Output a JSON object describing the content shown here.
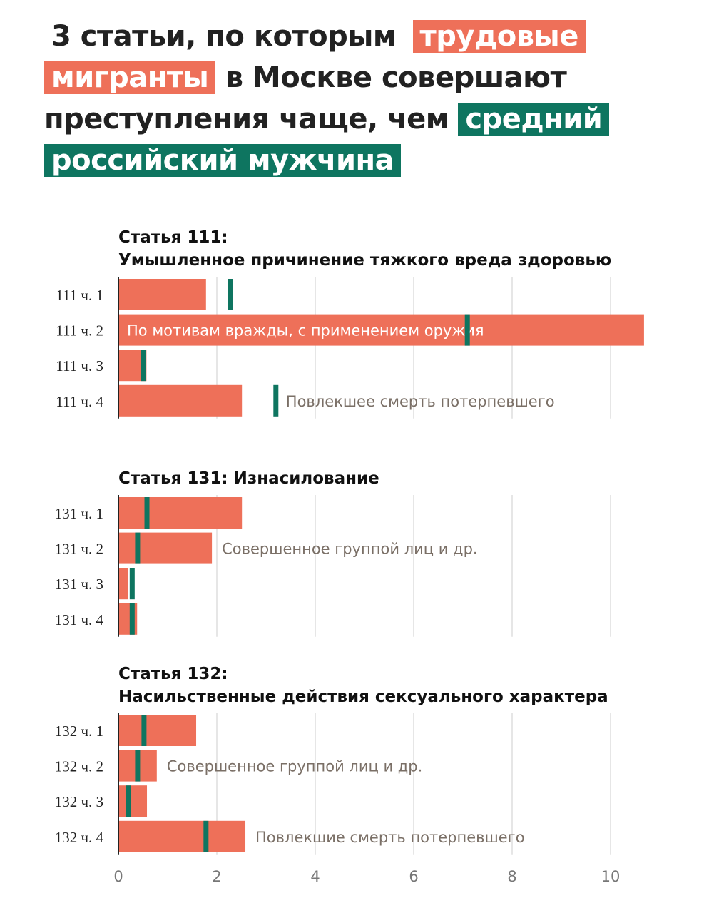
{
  "title": {
    "parts": [
      {
        "text": "3 статьи, по которым",
        "highlight": null
      },
      {
        "text": "трудовые мигранты",
        "highlight": "migrant"
      },
      {
        "text": "в Москве совершают преступления чаще, чем",
        "highlight": null
      },
      {
        "text": "средний российский мужчина",
        "highlight": "male"
      }
    ]
  },
  "colors": {
    "migrant": "#EE7059",
    "male": "#0E7560",
    "grid": "#e6e6e6",
    "axis": "#222222"
  },
  "chart_data": {
    "type": "bar",
    "orientation": "horizontal",
    "xlim": [
      0,
      10.8
    ],
    "xticks": [
      0,
      2,
      4,
      6,
      8,
      10
    ],
    "grid": true,
    "series": [
      {
        "name": "трудовые мигранты",
        "mark": "bar"
      },
      {
        "name": "средний российский мужчина",
        "mark": "tick"
      }
    ],
    "panels": [
      {
        "title_lines": [
          "Статья 111:",
          "Умышленное причинение тяжкого вреда здоровью"
        ],
        "rows": [
          {
            "label": "111 ч. 1",
            "migrants": 1.78,
            "male": 2.28,
            "note": null
          },
          {
            "label": "111 ч. 2",
            "migrants": 10.68,
            "male": 7.09,
            "note": "По мотивам вражды, с применением оружия",
            "note_inside": true
          },
          {
            "label": "111 ч. 3",
            "migrants": 0.57,
            "male": 0.51,
            "note": null
          },
          {
            "label": "111 ч. 4",
            "migrants": 2.51,
            "male": 3.2,
            "note": "Повлекшее смерть потерпевшего"
          }
        ]
      },
      {
        "title_lines": [
          "Статья 131: Изнасилование"
        ],
        "rows": [
          {
            "label": "131 ч. 1",
            "migrants": 2.51,
            "male": 0.58,
            "note": null
          },
          {
            "label": "131 ч. 2",
            "migrants": 1.9,
            "male": 0.39,
            "note": "Совершенное группой лиц и др."
          },
          {
            "label": "131 ч. 3",
            "migrants": 0.2,
            "male": 0.28,
            "note": null
          },
          {
            "label": "131 ч. 4",
            "migrants": 0.38,
            "male": 0.28,
            "note": null
          }
        ]
      },
      {
        "title_lines": [
          "Статья 132:",
          "Насильственные действия сексуального характера"
        ],
        "rows": [
          {
            "label": "132 ч. 1",
            "migrants": 1.58,
            "male": 0.52,
            "note": null
          },
          {
            "label": "132 ч. 2",
            "migrants": 0.78,
            "male": 0.39,
            "note": "Совершенное группой лиц и др."
          },
          {
            "label": "132 ч. 3",
            "migrants": 0.58,
            "male": 0.2,
            "note": null
          },
          {
            "label": "132 ч. 4",
            "migrants": 2.58,
            "male": 1.78,
            "note": "Повлекшие смерть потерпевшего"
          }
        ]
      }
    ]
  }
}
